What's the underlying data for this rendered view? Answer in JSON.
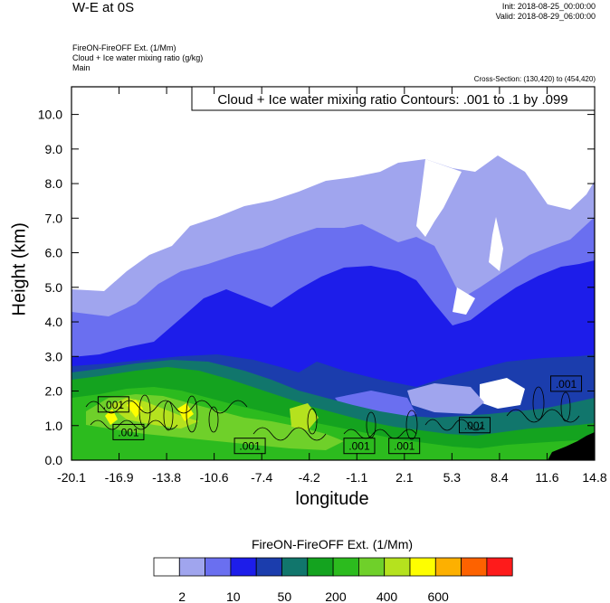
{
  "header": {
    "title": "W-E at 0S",
    "init": "Init: 2018-08-25_00:00:00",
    "valid": "Valid: 2018-08-29_06:00:00",
    "field1": "FireON-FireOFF Ext.   (1/Mm)",
    "field2": "Cloud + Ice water mixing ratio   (g/kg)",
    "field3": "Main",
    "cross_section": "Cross-Section: (130,420) to (454,420)"
  },
  "chart_data": {
    "type": "heatmap",
    "contour_note": "Cloud + Ice water mixing ratio Contours: .001 to .1 by .099",
    "xlabel": "longitude",
    "ylabel": "Height (km)",
    "x_ticks": [
      "-20.1",
      "-16.9",
      "-13.8",
      "-10.6",
      "-7.4",
      "-4.2",
      "-1.1",
      "2.1",
      "5.3",
      "8.4",
      "11.6",
      "14.8"
    ],
    "y_ticks": [
      "0.0",
      "1.0",
      "2.0",
      "3.0",
      "4.0",
      "5.0",
      "6.0",
      "7.0",
      "8.0",
      "9.0",
      "10.0"
    ],
    "xlim": [
      -20.1,
      14.8
    ],
    "ylim": [
      0,
      10.8
    ],
    "contour_labels": [
      {
        "text": ".001",
        "x": -17.3,
        "y": 1.6
      },
      {
        "text": ".001",
        "x": -16.3,
        "y": 0.8
      },
      {
        "text": ".001",
        "x": -8.2,
        "y": 0.4
      },
      {
        "text": ".001",
        "x": -0.9,
        "y": 0.4
      },
      {
        "text": ".001",
        "x": 2.1,
        "y": 0.4
      },
      {
        "text": ".001",
        "x": 6.8,
        "y": 1.0
      },
      {
        "text": ".001",
        "x": 12.9,
        "y": 2.2
      }
    ],
    "colorbar": {
      "title": "FireON-FireOFF Ext.  (1/Mm)",
      "colors": [
        "#ffffff",
        "#a0a5ee",
        "#6a6ff0",
        "#1d1dea",
        "#1b3dad",
        "#11766c",
        "#14a31f",
        "#2cbb1e",
        "#6fd02a",
        "#b5e21e",
        "#fefe00",
        "#fdb000",
        "#fd6200",
        "#fe1b1b"
      ],
      "labels": [
        "2",
        "10",
        "50",
        "200",
        "400",
        "600"
      ]
    }
  }
}
